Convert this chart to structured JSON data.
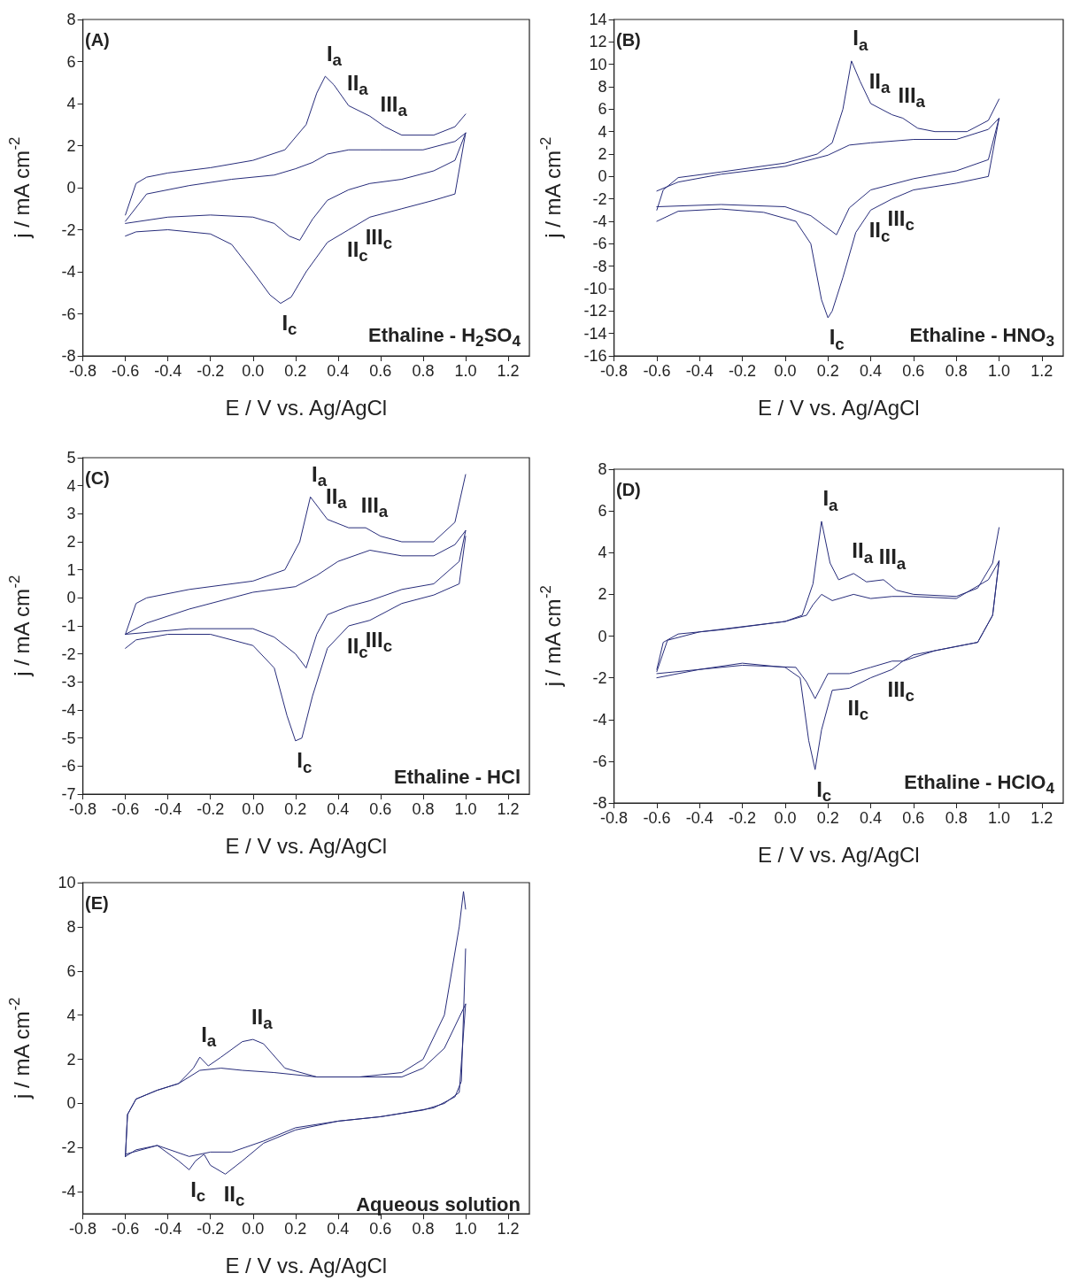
{
  "chart_data": [
    {
      "type": "line",
      "title": "(A)",
      "xlabel": "E / V vs. Ag/AgCl",
      "ylabel": "j / mA cm$^{-2}$",
      "grid": false,
      "marker": "none",
      "line_style": "solid",
      "xlim": [
        -0.8,
        1.3
      ],
      "xticks": [
        {
          "value": -0.8,
          "label": "-0.8"
        },
        {
          "value": -0.6,
          "label": "-0.6"
        },
        {
          "value": -0.4,
          "label": "-0.4"
        },
        {
          "value": -0.2,
          "label": "-0.2"
        },
        {
          "value": 0,
          "label": "0.0"
        },
        {
          "value": 0.2,
          "label": "0.2"
        },
        {
          "value": 0.4,
          "label": "0.4"
        },
        {
          "value": 0.6,
          "label": "0.6"
        },
        {
          "value": 0.8,
          "label": "0.8"
        },
        {
          "value": 1,
          "label": "1.0"
        },
        {
          "value": 1.2,
          "label": "1.2"
        }
      ],
      "ylim": [
        -8,
        8
      ],
      "yticks": [
        -8,
        -6,
        -4,
        -2,
        0,
        2,
        4,
        6,
        8
      ],
      "series": [
        {
          "color": "#272c7a",
          "x": [
            -0.6,
            -0.55,
            -0.5,
            -0.4,
            -0.2,
            0,
            0.15,
            0.25,
            0.3,
            0.34,
            0.38,
            0.45,
            0.55,
            0.62,
            0.7,
            0.85,
            0.95,
            1.0
          ],
          "values": [
            -1.3,
            0.2,
            0.5,
            0.7,
            0.95,
            1.3,
            1.8,
            3,
            4.5,
            5.3,
            4.9,
            3.9,
            3.4,
            2.9,
            2.5,
            2.5,
            2.9,
            3.5
          ]
        },
        {
          "color": "#272c7a",
          "x": [
            1.0,
            0.95,
            0.85,
            0.7,
            0.55,
            0.45,
            0.35,
            0.25,
            0.18,
            0.13,
            0.08,
            0,
            -0.1,
            -0.2,
            -0.4,
            -0.55,
            -0.6
          ],
          "values": [
            2.6,
            -0.3,
            -0.6,
            -1.0,
            -1.4,
            -2.0,
            -2.6,
            -4.0,
            -5.2,
            -5.5,
            -5.1,
            -4.0,
            -2.7,
            -2.2,
            -2.0,
            -2.1,
            -2.3
          ]
        },
        {
          "color": "#272c7a",
          "x": [
            -0.6,
            -0.5,
            -0.3,
            -0.1,
            0.1,
            0.2,
            0.28,
            0.35,
            0.45,
            0.6,
            0.8,
            0.95,
            1.0
          ],
          "values": [
            -1.6,
            -0.3,
            0.1,
            0.4,
            0.6,
            0.9,
            1.2,
            1.6,
            1.8,
            1.8,
            1.8,
            2.2,
            2.6
          ]
        },
        {
          "color": "#272c7a",
          "x": [
            1.0,
            0.95,
            0.85,
            0.7,
            0.55,
            0.45,
            0.35,
            0.28,
            0.22,
            0.17,
            0.1,
            0,
            -0.2,
            -0.4,
            -0.6
          ],
          "values": [
            2.6,
            1.3,
            0.8,
            0.4,
            0.2,
            -0.1,
            -0.6,
            -1.5,
            -2.5,
            -2.3,
            -1.7,
            -1.4,
            -1.3,
            -1.4,
            -1.7
          ]
        }
      ],
      "annotations": [
        {
          "text": "I$_{a}$",
          "x": 0.34,
          "y": 5.3
        },
        {
          "text": "II$_{a}$",
          "x": 0.45,
          "y": 3.9
        },
        {
          "text": "III$_{a}$",
          "x": 0.62,
          "y": 2.9
        },
        {
          "text": "II$_{c}$",
          "x": 0.45,
          "y": -2.0
        },
        {
          "text": "III$_{c}$",
          "x": 0.55,
          "y": -1.4
        },
        {
          "text": "I$_{c}$",
          "x": 0.13,
          "y": -5.5
        },
        "Ethaline - H$_{2}$SO$_{4}$"
      ]
    },
    {
      "type": "line",
      "title": "(B)",
      "xlabel": "E / V vs. Ag/AgCl",
      "ylabel": "j / mA cm$^{-2}$",
      "grid": false,
      "marker": "none",
      "line_style": "solid",
      "xlim": [
        -0.8,
        1.3
      ],
      "xticks": [
        {
          "value": -0.8,
          "label": "-0.8"
        },
        {
          "value": -0.6,
          "label": "-0.6"
        },
        {
          "value": -0.4,
          "label": "-0.4"
        },
        {
          "value": -0.2,
          "label": "-0.2"
        },
        {
          "value": 0,
          "label": "0.0"
        },
        {
          "value": 0.2,
          "label": "0.2"
        },
        {
          "value": 0.4,
          "label": "0.4"
        },
        {
          "value": 0.6,
          "label": "0.6"
        },
        {
          "value": 0.8,
          "label": "0.8"
        },
        {
          "value": 1,
          "label": "1.0"
        },
        {
          "value": 1.2,
          "label": "1.2"
        }
      ],
      "ylim": [
        -16,
        14
      ],
      "yticks": [
        -16,
        -14,
        -12,
        -10,
        -8,
        -6,
        -4,
        -2,
        0,
        2,
        4,
        6,
        8,
        10,
        12,
        14
      ],
      "series": [
        {
          "color": "#272c7a",
          "x": [
            -0.6,
            -0.57,
            -0.5,
            -0.3,
            0,
            0.15,
            0.22,
            0.27,
            0.31,
            0.35,
            0.4,
            0.5,
            0.55,
            0.62,
            0.7,
            0.85,
            0.95,
            1.0
          ],
          "values": [
            -3,
            -1.2,
            -0.1,
            0.4,
            1.2,
            2,
            3,
            6,
            10.3,
            8.5,
            6.5,
            5.5,
            5.2,
            4.3,
            4,
            4,
            5,
            6.9
          ]
        },
        {
          "color": "#272c7a",
          "x": [
            1.0,
            0.95,
            0.8,
            0.6,
            0.5,
            0.4,
            0.33,
            0.27,
            0.22,
            0.2,
            0.17,
            0.12,
            0.05,
            -0.1,
            -0.3,
            -0.5,
            -0.6
          ],
          "values": [
            5.2,
            0,
            -0.6,
            -1.2,
            -2.0,
            -3.0,
            -5,
            -9,
            -12,
            -12.6,
            -11,
            -6,
            -4,
            -3.2,
            -2.9,
            -3.1,
            -4
          ]
        },
        {
          "color": "#272c7a",
          "x": [
            -0.6,
            -0.5,
            -0.3,
            0,
            0.2,
            0.3,
            0.4,
            0.6,
            0.8,
            0.95,
            1.0
          ],
          "values": [
            -1.3,
            -0.5,
            0.2,
            0.9,
            1.9,
            2.8,
            3.0,
            3.3,
            3.3,
            4.2,
            5.2
          ]
        },
        {
          "color": "#272c7a",
          "x": [
            1.0,
            0.95,
            0.8,
            0.6,
            0.4,
            0.3,
            0.24,
            0.19,
            0.12,
            0,
            -0.3,
            -0.6
          ],
          "values": [
            5.2,
            1.5,
            0.5,
            -0.2,
            -1.2,
            -2.8,
            -5.2,
            -4.5,
            -3.5,
            -2.7,
            -2.5,
            -2.7
          ]
        }
      ],
      "annotations": [
        {
          "text": "I$_{a}$",
          "x": 0.31,
          "y": 10.3
        },
        {
          "text": "II$_{a}$",
          "x": 0.4,
          "y": 6.5
        },
        {
          "text": "III$_{a}$",
          "x": 0.55,
          "y": 5.2
        },
        {
          "text": "III$_{c}$",
          "x": 0.5,
          "y": -2.0
        },
        {
          "text": "II$_{c}$",
          "x": 0.4,
          "y": -3.0
        },
        {
          "text": "I$_{c}$",
          "x": 0.2,
          "y": -12.6
        },
        "Ethaline - HNO$_{3}$"
      ]
    },
    {
      "type": "line",
      "title": "(C)",
      "xlabel": "E / V vs. Ag/AgCl",
      "ylabel": "j / mA cm$^{-2}$",
      "grid": false,
      "marker": "none",
      "line_style": "solid",
      "xlim": [
        -0.8,
        1.3
      ],
      "xticks": [
        {
          "value": -0.8,
          "label": "-0.8"
        },
        {
          "value": -0.6,
          "label": "-0.6"
        },
        {
          "value": -0.4,
          "label": "-0.4"
        },
        {
          "value": -0.2,
          "label": "-0.2"
        },
        {
          "value": 0,
          "label": "0.0"
        },
        {
          "value": 0.2,
          "label": "0.2"
        },
        {
          "value": 0.4,
          "label": "0.4"
        },
        {
          "value": 0.6,
          "label": "0.6"
        },
        {
          "value": 0.8,
          "label": "0.8"
        },
        {
          "value": 1,
          "label": "1.0"
        },
        {
          "value": 1.2,
          "label": "1.2"
        }
      ],
      "ylim": [
        -7,
        5
      ],
      "yticks": [
        -7,
        -6,
        -5,
        -4,
        -3,
        -2,
        -1,
        0,
        1,
        2,
        3,
        4,
        5
      ],
      "series": [
        {
          "color": "#272c7a",
          "x": [
            -0.6,
            -0.55,
            -0.5,
            -0.3,
            0,
            0.15,
            0.22,
            0.27,
            0.31,
            0.35,
            0.45,
            0.53,
            0.6,
            0.7,
            0.85,
            0.95,
            1.0
          ],
          "values": [
            -1.3,
            -0.2,
            0,
            0.3,
            0.6,
            1.0,
            2.0,
            3.6,
            3.2,
            2.8,
            2.5,
            2.5,
            2.2,
            2.0,
            2.0,
            2.7,
            4.4
          ]
        },
        {
          "color": "#272c7a",
          "x": [
            1.0,
            0.97,
            0.85,
            0.7,
            0.55,
            0.45,
            0.35,
            0.28,
            0.23,
            0.2,
            0.16,
            0.1,
            0,
            -0.2,
            -0.4,
            -0.55,
            -0.6
          ],
          "values": [
            2.2,
            0.5,
            0.1,
            -0.2,
            -0.8,
            -1.0,
            -1.8,
            -3.5,
            -5.0,
            -5.1,
            -4.2,
            -2.5,
            -1.7,
            -1.3,
            -1.3,
            -1.5,
            -1.8
          ]
        },
        {
          "color": "#272c7a",
          "x": [
            -0.6,
            -0.5,
            -0.3,
            0,
            0.2,
            0.3,
            0.4,
            0.55,
            0.7,
            0.85,
            0.95,
            1.0
          ],
          "values": [
            -1.3,
            -0.9,
            -0.4,
            0.2,
            0.4,
            0.8,
            1.3,
            1.7,
            1.5,
            1.5,
            1.9,
            2.4
          ]
        },
        {
          "color": "#272c7a",
          "x": [
            1.0,
            0.97,
            0.85,
            0.7,
            0.55,
            0.45,
            0.35,
            0.3,
            0.25,
            0.2,
            0.1,
            0,
            -0.3,
            -0.6
          ],
          "values": [
            2.4,
            1.3,
            0.5,
            0.3,
            -0.1,
            -0.3,
            -0.6,
            -1.3,
            -2.5,
            -2.0,
            -1.4,
            -1.1,
            -1.1,
            -1.3
          ]
        }
      ],
      "annotations": [
        {
          "text": "I$_{a}$",
          "x": 0.27,
          "y": 3.6
        },
        {
          "text": "II$_{a}$",
          "x": 0.35,
          "y": 2.8
        },
        {
          "text": "III$_{a}$",
          "x": 0.53,
          "y": 2.5
        },
        {
          "text": "II$_{c}$",
          "x": 0.45,
          "y": -1.0
        },
        {
          "text": "III$_{c}$",
          "x": 0.55,
          "y": -0.8
        },
        {
          "text": "I$_{c}$",
          "x": 0.2,
          "y": -5.1
        },
        "Ethaline - HCl"
      ]
    },
    {
      "type": "line",
      "title": "(D)",
      "xlabel": "E / V vs. Ag/AgCl",
      "ylabel": "j / mA cm$^{-2}$",
      "grid": false,
      "marker": "none",
      "line_style": "solid",
      "xlim": [
        -0.8,
        1.3
      ],
      "xticks": [
        {
          "value": -0.8,
          "label": "-0.8"
        },
        {
          "value": -0.6,
          "label": "-0.6"
        },
        {
          "value": -0.4,
          "label": "-0.4"
        },
        {
          "value": -0.2,
          "label": "-0.2"
        },
        {
          "value": 0,
          "label": "0.0"
        },
        {
          "value": 0.2,
          "label": "0.2"
        },
        {
          "value": 0.4,
          "label": "0.4"
        },
        {
          "value": 0.6,
          "label": "0.6"
        },
        {
          "value": 0.8,
          "label": "0.8"
        },
        {
          "value": 1,
          "label": "1.0"
        },
        {
          "value": 1.2,
          "label": "1.2"
        }
      ],
      "ylim": [
        -8,
        8
      ],
      "yticks": [
        -8,
        -6,
        -4,
        -2,
        0,
        2,
        4,
        6,
        8
      ],
      "series": [
        {
          "color": "#272c7a",
          "x": [
            -0.6,
            -0.57,
            -0.5,
            -0.3,
            0,
            0.08,
            0.13,
            0.17,
            0.21,
            0.25,
            0.32,
            0.38,
            0.46,
            0.52,
            0.6,
            0.8,
            0.9,
            0.97,
            1.0
          ],
          "values": [
            -1.6,
            -0.3,
            0.1,
            0.3,
            0.7,
            1.0,
            2.5,
            5.5,
            3.5,
            2.7,
            3.0,
            2.6,
            2.7,
            2.2,
            2.0,
            1.9,
            2.3,
            3.5,
            5.2
          ]
        },
        {
          "color": "#272c7a",
          "x": [
            1.0,
            0.97,
            0.9,
            0.8,
            0.6,
            0.55,
            0.5,
            0.4,
            0.3,
            0.22,
            0.17,
            0.14,
            0.11,
            0.07,
            0,
            -0.2,
            -0.4,
            -0.6
          ],
          "values": [
            3.6,
            1.0,
            -0.3,
            -0.5,
            -0.9,
            -1.2,
            -1.6,
            -2.0,
            -2.5,
            -2.6,
            -4.5,
            -6.4,
            -5,
            -2.0,
            -1.5,
            -1.3,
            -1.6,
            -2.0
          ]
        },
        {
          "color": "#272c7a",
          "x": [
            -0.6,
            -0.55,
            -0.4,
            0,
            0.1,
            0.13,
            0.17,
            0.22,
            0.32,
            0.4,
            0.5,
            0.6,
            0.8,
            0.95,
            1.0
          ],
          "values": [
            -1.7,
            -0.2,
            0.2,
            0.7,
            1.0,
            1.5,
            2.0,
            1.7,
            2.0,
            1.8,
            1.9,
            1.9,
            1.8,
            2.7,
            3.6
          ]
        },
        {
          "color": "#272c7a",
          "x": [
            1.0,
            0.97,
            0.9,
            0.7,
            0.55,
            0.5,
            0.4,
            0.3,
            0.2,
            0.14,
            0.1,
            0.05,
            -0.2,
            -0.6
          ],
          "values": [
            3.6,
            1.0,
            -0.3,
            -0.7,
            -1.2,
            -1.2,
            -1.5,
            -1.8,
            -1.8,
            -3.0,
            -2.2,
            -1.5,
            -1.4,
            -1.8
          ]
        }
      ],
      "annotations": [
        {
          "text": "I$_{a}$",
          "x": 0.17,
          "y": 5.5
        },
        {
          "text": "II$_{a}$",
          "x": 0.32,
          "y": 3.0
        },
        {
          "text": "III$_{a}$",
          "x": 0.46,
          "y": 2.7
        },
        {
          "text": "II$_{c}$",
          "x": 0.3,
          "y": -2.5
        },
        {
          "text": "III$_{c}$",
          "x": 0.5,
          "y": -1.6
        },
        {
          "text": "I$_{c}$",
          "x": 0.14,
          "y": -6.4
        },
        "Ethaline - HClO$_{4}$"
      ]
    },
    {
      "type": "line",
      "title": "(E)",
      "xlabel": "E / V vs. Ag/AgCl",
      "ylabel": "j / mA cm$^{-2}$",
      "grid": false,
      "marker": "none",
      "line_style": "solid",
      "xlim": [
        -0.8,
        1.3
      ],
      "xticks": [
        {
          "value": -0.8,
          "label": "-0.8"
        },
        {
          "value": -0.6,
          "label": "-0.6"
        },
        {
          "value": -0.4,
          "label": "-0.4"
        },
        {
          "value": -0.2,
          "label": "-0.2"
        },
        {
          "value": 0,
          "label": "0.0"
        },
        {
          "value": 0.2,
          "label": "0.2"
        },
        {
          "value": 0.4,
          "label": "0.4"
        },
        {
          "value": 0.6,
          "label": "0.6"
        },
        {
          "value": 0.8,
          "label": "0.8"
        },
        {
          "value": 1,
          "label": "1.0"
        },
        {
          "value": 1.2,
          "label": "1.2"
        }
      ],
      "ylim": [
        -5,
        10
      ],
      "yticks": [
        -4,
        -2,
        0,
        2,
        4,
        6,
        8,
        10
      ],
      "series": [
        {
          "color": "#272c7a",
          "x": [
            -0.6,
            -0.59,
            -0.55,
            -0.45,
            -0.35,
            -0.28,
            -0.25,
            -0.21,
            -0.15,
            -0.05,
            0,
            0.05,
            0.15,
            0.3,
            0.5,
            0.7,
            0.8,
            0.9,
            0.97,
            0.99,
            1.0
          ],
          "values": [
            -2.4,
            -0.5,
            0.2,
            0.6,
            0.9,
            1.6,
            2.1,
            1.7,
            2.1,
            2.8,
            2.9,
            2.7,
            1.6,
            1.2,
            1.2,
            1.4,
            2.0,
            4.0,
            8,
            9.6,
            8.8
          ]
        },
        {
          "color": "#272c7a",
          "x": [
            1.0,
            0.98,
            0.95,
            0.85,
            0.6,
            0.4,
            0.2,
            0.05,
            -0.05,
            -0.13,
            -0.2,
            -0.23,
            -0.27,
            -0.3,
            -0.35,
            -0.45,
            -0.55,
            -0.6
          ],
          "values": [
            7,
            1.0,
            0.3,
            -0.2,
            -0.6,
            -0.8,
            -1.2,
            -1.8,
            -2.6,
            -3.2,
            -2.8,
            -2.3,
            -2.6,
            -3.0,
            -2.6,
            -1.9,
            -2.1,
            -2.4
          ]
        },
        {
          "color": "#272c7a",
          "x": [
            -0.6,
            -0.59,
            -0.55,
            -0.45,
            -0.35,
            -0.25,
            -0.15,
            -0.05,
            0.1,
            0.3,
            0.5,
            0.7,
            0.8,
            0.9,
            1.0
          ],
          "values": [
            -2.4,
            -0.5,
            0.2,
            0.6,
            0.9,
            1.5,
            1.6,
            1.5,
            1.4,
            1.2,
            1.2,
            1.2,
            1.6,
            2.5,
            4.5
          ]
        },
        {
          "color": "#272c7a",
          "x": [
            1.0,
            0.97,
            0.9,
            0.8,
            0.6,
            0.4,
            0.2,
            0.05,
            -0.1,
            -0.2,
            -0.3,
            -0.45,
            -0.6
          ],
          "values": [
            4.5,
            0.5,
            0,
            -0.3,
            -0.6,
            -0.8,
            -1.1,
            -1.7,
            -2.2,
            -2.2,
            -2.4,
            -1.9,
            -2.3
          ]
        }
      ],
      "annotations": [
        {
          "text": "I$_{a}$",
          "x": -0.25,
          "y": 2.1
        },
        {
          "text": "II$_{a}$",
          "x": 0,
          "y": 2.9
        },
        {
          "text": "I$_{c}$",
          "x": -0.3,
          "y": -3.0
        },
        {
          "text": "II$_{c}$",
          "x": -0.13,
          "y": -3.2
        },
        "Aqueous solution"
      ]
    }
  ]
}
